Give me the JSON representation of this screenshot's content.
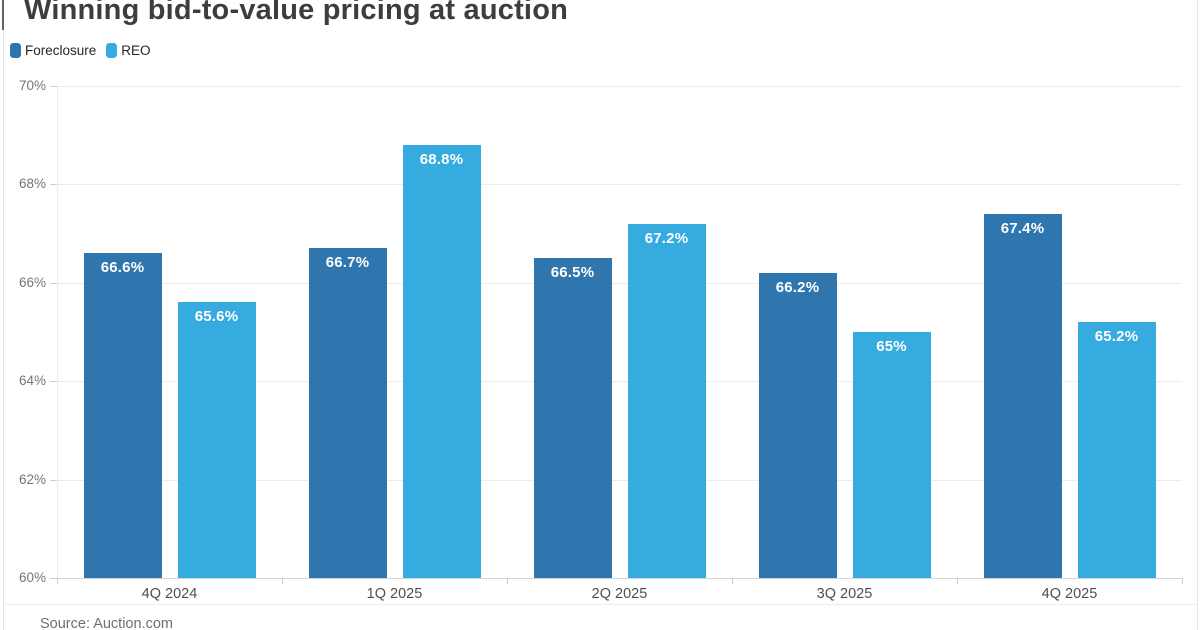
{
  "title": "Winning bid-to-value pricing at auction",
  "source": "Source: Auction.com",
  "colors": {
    "foreclosure": "#3076ae",
    "reo": "#36abdf",
    "value_label": "#ffffff",
    "title_text": "#3d3d3f",
    "axis_text": "#757575",
    "category_text": "#4f4f4f"
  },
  "chart_data": {
    "type": "bar",
    "title": "Winning bid-to-value pricing at auction",
    "categories": [
      "4Q 2024",
      "1Q 2025",
      "2Q 2025",
      "3Q 2025",
      "4Q 2025"
    ],
    "series": [
      {
        "name": "Foreclosure",
        "color": "#3076ae",
        "values": [
          66.6,
          66.7,
          66.5,
          66.2,
          67.4
        ],
        "labels": [
          "66.6%",
          "66.7%",
          "66.5%",
          "66.2%",
          "67.4%"
        ]
      },
      {
        "name": "REO",
        "color": "#36abdf",
        "values": [
          65.6,
          68.8,
          67.2,
          65.0,
          65.2
        ],
        "labels": [
          "65.6%",
          "68.8%",
          "67.2%",
          "65%",
          "65.2%"
        ]
      }
    ],
    "xlabel": "",
    "ylabel": "",
    "ylim": [
      60,
      70
    ],
    "yticks": [
      {
        "value": 70,
        "label": "70%"
      },
      {
        "value": 68,
        "label": "68%"
      },
      {
        "value": 66,
        "label": "66%"
      },
      {
        "value": 64,
        "label": "64%"
      },
      {
        "value": 62,
        "label": "62%"
      },
      {
        "value": 60,
        "label": "60%"
      }
    ],
    "grid": "horizontal",
    "legend_position": "top-left",
    "source": "Source: Auction.com"
  }
}
